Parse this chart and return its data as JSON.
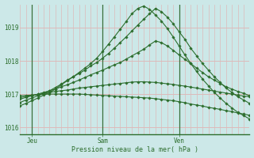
{
  "background_color": "#cce8e8",
  "grid_color": "#ddbaba",
  "line_color": "#2d6e2d",
  "marker_color": "#2d6e2d",
  "xlabel": "Pression niveau de la mer( hPa )",
  "ylim": [
    1015.8,
    1019.7
  ],
  "yticks": [
    1016,
    1017,
    1018,
    1019
  ],
  "xtick_labels": [
    "Jeu",
    "Sam",
    "Ven"
  ],
  "xtick_positions": [
    2,
    14,
    27
  ],
  "vline_positions": [
    2,
    14,
    27
  ],
  "n_points": 40,
  "series": [
    [
      1016.75,
      1016.82,
      1016.88,
      1016.95,
      1017.02,
      1017.1,
      1017.2,
      1017.3,
      1017.42,
      1017.52,
      1017.62,
      1017.72,
      1017.85,
      1017.95,
      1018.08,
      1018.22,
      1018.38,
      1018.55,
      1018.72,
      1018.9,
      1019.08,
      1019.25,
      1019.42,
      1019.58,
      1019.48,
      1019.32,
      1019.12,
      1018.88,
      1018.65,
      1018.38,
      1018.15,
      1017.92,
      1017.72,
      1017.52,
      1017.35,
      1017.18,
      1017.05,
      1016.92,
      1016.82,
      1016.72
    ],
    [
      1016.65,
      1016.72,
      1016.8,
      1016.88,
      1016.97,
      1017.05,
      1017.15,
      1017.28,
      1017.4,
      1017.52,
      1017.65,
      1017.78,
      1017.92,
      1018.08,
      1018.28,
      1018.5,
      1018.72,
      1018.95,
      1019.18,
      1019.42,
      1019.58,
      1019.65,
      1019.55,
      1019.38,
      1019.2,
      1018.98,
      1018.72,
      1018.45,
      1018.18,
      1017.92,
      1017.68,
      1017.45,
      1017.25,
      1017.05,
      1016.88,
      1016.72,
      1016.58,
      1016.45,
      1016.35,
      1016.25
    ],
    [
      1016.85,
      1016.9,
      1016.95,
      1017.0,
      1017.05,
      1017.1,
      1017.15,
      1017.22,
      1017.28,
      1017.35,
      1017.42,
      1017.5,
      1017.58,
      1017.65,
      1017.72,
      1017.8,
      1017.88,
      1017.95,
      1018.05,
      1018.15,
      1018.25,
      1018.35,
      1018.48,
      1018.6,
      1018.55,
      1018.45,
      1018.32,
      1018.18,
      1018.05,
      1017.92,
      1017.78,
      1017.65,
      1017.52,
      1017.42,
      1017.32,
      1017.22,
      1017.15,
      1017.08,
      1017.02,
      1016.95
    ],
    [
      1016.9,
      1016.93,
      1016.96,
      1016.99,
      1017.02,
      1017.05,
      1017.08,
      1017.1,
      1017.12,
      1017.15,
      1017.18,
      1017.2,
      1017.22,
      1017.24,
      1017.26,
      1017.28,
      1017.3,
      1017.32,
      1017.34,
      1017.36,
      1017.37,
      1017.37,
      1017.36,
      1017.35,
      1017.33,
      1017.31,
      1017.29,
      1017.26,
      1017.24,
      1017.21,
      1017.18,
      1017.15,
      1017.12,
      1017.09,
      1017.06,
      1017.03,
      1017.0,
      1016.97,
      1016.94,
      1016.92
    ],
    [
      1016.95,
      1016.96,
      1016.97,
      1016.98,
      1016.99,
      1017.0,
      1017.0,
      1017.0,
      1017.0,
      1017.0,
      1017.0,
      1016.99,
      1016.98,
      1016.97,
      1016.96,
      1016.95,
      1016.94,
      1016.93,
      1016.92,
      1016.91,
      1016.9,
      1016.89,
      1016.88,
      1016.86,
      1016.84,
      1016.82,
      1016.8,
      1016.77,
      1016.74,
      1016.7,
      1016.67,
      1016.64,
      1016.6,
      1016.57,
      1016.54,
      1016.5,
      1016.47,
      1016.43,
      1016.4,
      1016.36
    ]
  ]
}
